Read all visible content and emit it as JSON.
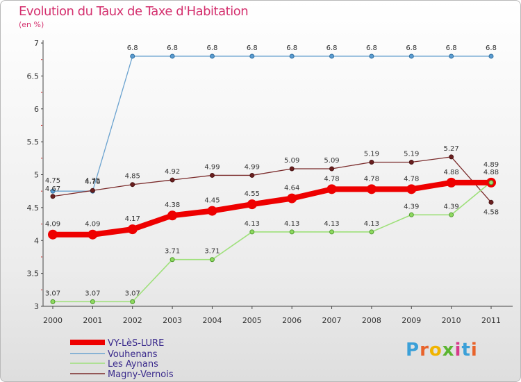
{
  "chart_data": {
    "type": "line",
    "title": "Evolution du Taux de Taxe d'Habitation",
    "subtitle": "(en %)",
    "x": [
      "2000",
      "2001",
      "2002",
      "2003",
      "2004",
      "2005",
      "2006",
      "2007",
      "2008",
      "2009",
      "2010",
      "2011"
    ],
    "ylim": [
      3,
      7
    ],
    "yticks": [
      "3",
      "3.5",
      "4",
      "4.5",
      "5",
      "5.5",
      "6",
      "6.5",
      "7"
    ],
    "grid": false,
    "legend_position": "bottom-left",
    "series": [
      {
        "name": "VY-LèS-LURE",
        "color": "#ee0000",
        "values": [
          4.09,
          4.09,
          4.17,
          4.38,
          4.45,
          4.55,
          4.64,
          4.78,
          4.78,
          4.78,
          4.88,
          4.88
        ],
        "labels": [
          "4.09",
          "4.09",
          "4.17",
          "4.38",
          "4.45",
          "4.55",
          "4.64",
          "4.78",
          "4.78",
          "4.78",
          "4.88",
          "4.88"
        ]
      },
      {
        "name": "Vouhenans",
        "color": "#6aa2cf",
        "values": [
          4.75,
          4.75,
          6.8,
          6.8,
          6.8,
          6.8,
          6.8,
          6.8,
          6.8,
          6.8,
          6.8,
          6.8
        ],
        "labels": [
          "4.75",
          "4.75",
          "6.8",
          "6.8",
          "6.8",
          "6.8",
          "6.8",
          "6.8",
          "6.8",
          "6.8",
          "6.8",
          "6.8"
        ]
      },
      {
        "name": "Les Aynans",
        "color": "#9ee07a",
        "values": [
          3.07,
          3.07,
          3.07,
          3.71,
          3.71,
          4.13,
          4.13,
          4.13,
          4.13,
          4.39,
          4.39,
          4.89
        ],
        "labels": [
          "3.07",
          "3.07",
          "3.07",
          "3.71",
          "3.71",
          "4.13",
          "4.13",
          "4.13",
          "4.13",
          "4.39",
          "4.39",
          "4.89"
        ]
      },
      {
        "name": "Magny-Vernois",
        "color": "#7a2a2a",
        "values": [
          4.67,
          4.76,
          4.85,
          4.92,
          4.99,
          4.99,
          5.09,
          5.09,
          5.19,
          5.19,
          5.27,
          4.58
        ],
        "labels": [
          "4.67",
          "4.76",
          "4.85",
          "4.92",
          "4.99",
          "4.99",
          "5.09",
          "5.09",
          "5.19",
          "5.19",
          "5.27",
          "4.58"
        ]
      }
    ]
  },
  "logo": {
    "text": "Proxiti",
    "letter_colors": [
      "#3ba0d8",
      "#e8632b",
      "#f0b400",
      "#5bb531",
      "#d63a8a",
      "#3ba0d8",
      "#e8632b"
    ]
  }
}
